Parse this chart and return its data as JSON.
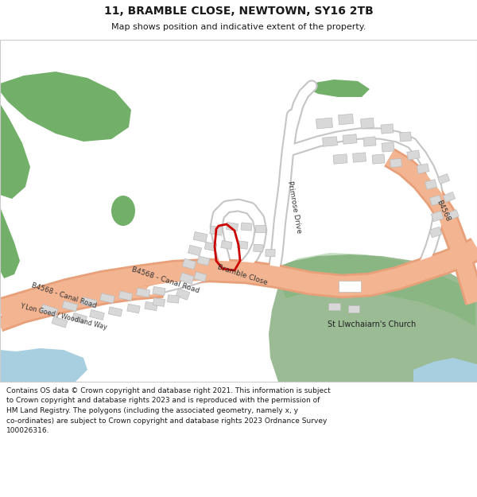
{
  "title": "11, BRAMBLE CLOSE, NEWTOWN, SY16 2TB",
  "subtitle": "Map shows position and indicative extent of the property.",
  "footer": "Contains OS data © Crown copyright and database right 2021. This information is subject\nto Crown copyright and database rights 2023 and is reproduced with the permission of\nHM Land Registry. The polygons (including the associated geometry, namely x, y\nco-ordinates) are subject to Crown copyright and database rights 2023 Ordnance Survey\n100026316.",
  "bg_color": "#ffffff",
  "road_color": "#f2b491",
  "road_outline": "#e8a07a",
  "green_dark": "#72b06a",
  "green_church": "#9abb94",
  "building_fill": "#d8d8d8",
  "building_edge": "#bbbbbb",
  "water_color": "#a8cfe0",
  "plot_red": "#cc0000",
  "text_dark": "#1a1a1a",
  "white_rect": "#ffffff"
}
